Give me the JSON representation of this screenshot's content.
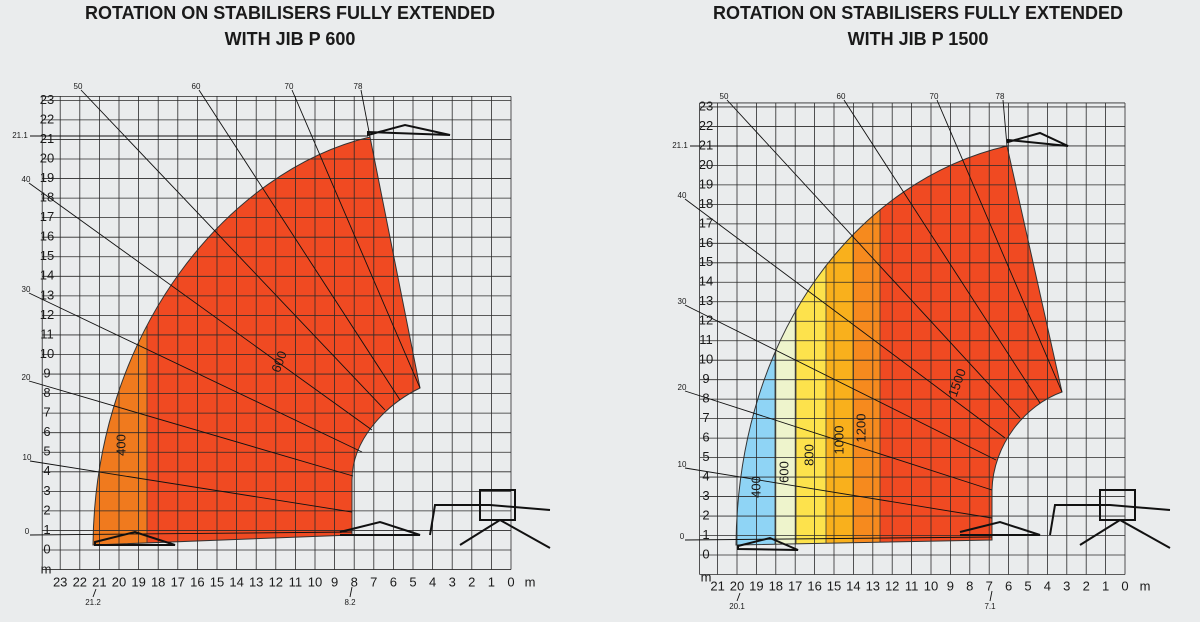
{
  "panels": [
    {
      "title_line1": "ROTATION ON STABILISERS FULLY EXTENDED",
      "title_line2": "WITH JIB P 600",
      "y_ticks": [
        0,
        1,
        2,
        3,
        4,
        5,
        6,
        7,
        8,
        9,
        10,
        11,
        12,
        13,
        14,
        15,
        16,
        17,
        18,
        19,
        20,
        21,
        22,
        23
      ],
      "x_ticks": [
        23,
        22,
        21,
        20,
        19,
        18,
        17,
        16,
        15,
        14,
        13,
        12,
        11,
        10,
        9,
        8,
        7,
        6,
        5,
        4,
        3,
        2,
        1,
        0
      ],
      "unit": "m",
      "angles": [
        "50",
        "60",
        "70",
        "78",
        "40",
        "30",
        "20",
        "10",
        "0"
      ],
      "ref_height": "21.1",
      "min_reach": "21.2",
      "max_reach": "8.2",
      "loads": [
        "400",
        "600"
      ]
    },
    {
      "title_line1": "ROTATION ON STABILISERS FULLY EXTENDED",
      "title_line2": "WITH JIB P 1500",
      "y_ticks": [
        0,
        1,
        2,
        3,
        4,
        5,
        6,
        7,
        8,
        9,
        10,
        11,
        12,
        13,
        14,
        15,
        16,
        17,
        18,
        19,
        20,
        21,
        22,
        23
      ],
      "x_ticks": [
        21,
        20,
        19,
        18,
        17,
        16,
        15,
        14,
        13,
        12,
        11,
        10,
        9,
        8,
        7,
        6,
        5,
        4,
        3,
        2,
        1,
        0
      ],
      "unit": "m",
      "angles": [
        "50",
        "60",
        "70",
        "78",
        "40",
        "30",
        "20",
        "10",
        "0"
      ],
      "ref_height": "21.1",
      "min_reach": "20.1",
      "max_reach": "7.1",
      "loads": [
        "400",
        "600",
        "800",
        "1000",
        "1200",
        "1500"
      ]
    }
  ]
}
